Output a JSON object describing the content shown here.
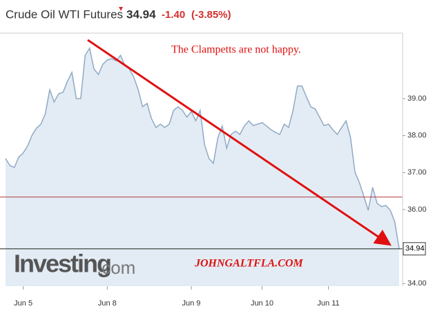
{
  "header": {
    "title": "Crude Oil WTI Futures",
    "change": "-1.40",
    "change_pct": "(-3.85%)"
  },
  "chart_data": {
    "type": "area",
    "annotations": [
      "The Clampetts are not happy.",
      "JOHNGALTFLA.COM"
    ],
    "watermark": "Investing",
    "watermark_suffix": ".com",
    "color": "#8fa9c6",
    "fill": "#e3ecf4",
    "current_price": 34.94,
    "previous_close": 36.34,
    "previous_close_color": "#b03a3a",
    "values": [
      37.38,
      37.19,
      37.14,
      37.42,
      37.53,
      37.72,
      38.01,
      38.2,
      38.31,
      38.59,
      39.24,
      38.91,
      39.13,
      39.17,
      39.47,
      39.71,
      39.0,
      39.0,
      40.17,
      40.36,
      39.8,
      39.65,
      39.93,
      40.04,
      40.08,
      40.02,
      40.17,
      39.89,
      39.8,
      39.58,
      39.24,
      38.78,
      38.87,
      38.46,
      38.22,
      38.31,
      38.22,
      38.31,
      38.68,
      38.78,
      38.68,
      38.5,
      38.65,
      38.4,
      38.68,
      37.75,
      37.38,
      37.25,
      37.94,
      38.26,
      37.66,
      38.03,
      38.12,
      38.03,
      38.26,
      38.4,
      38.27,
      38.31,
      38.35,
      38.26,
      38.16,
      38.09,
      38.03,
      38.31,
      38.22,
      38.68,
      39.34,
      39.34,
      39.06,
      38.78,
      38.72,
      38.5,
      38.27,
      38.31,
      38.16,
      38.03,
      38.22,
      38.4,
      37.94,
      37.01,
      36.73,
      36.36,
      35.98,
      36.6,
      36.17,
      36.08,
      36.11,
      35.98,
      35.67,
      34.94
    ],
    "xticks": [
      {
        "value": 4,
        "label": "Jun 5"
      },
      {
        "value": 23,
        "label": "Jun 8"
      },
      {
        "value": 42,
        "label": "Jun 9"
      },
      {
        "value": 58,
        "label": "Jun 10"
      },
      {
        "value": 73,
        "label": "Jun 11"
      }
    ],
    "ylim": [
      33.93,
      40.77
    ],
    "yticks": [
      {
        "value": 34,
        "label": "34.00"
      },
      {
        "value": 36,
        "label": "36.00"
      },
      {
        "value": 37,
        "label": "37.00"
      },
      {
        "value": 38,
        "label": "38.00"
      },
      {
        "value": 39,
        "label": "39.00"
      }
    ]
  }
}
